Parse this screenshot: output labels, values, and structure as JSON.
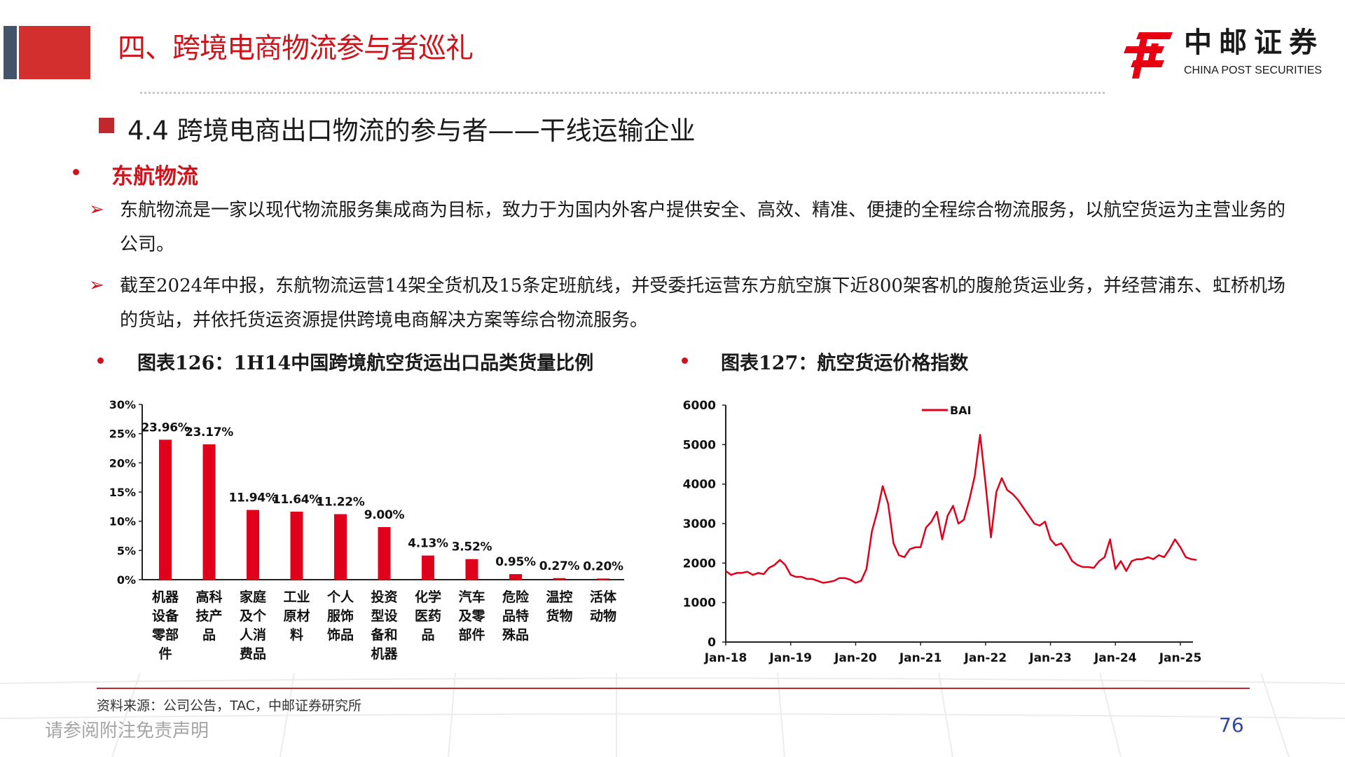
{
  "header": {
    "title": "四、跨境电商物流参与者巡礼",
    "logo_cn": "中邮证券",
    "logo_en": "CHINA POST SECURITIES"
  },
  "section": {
    "title": "4.4  跨境电商出口物流的参与者——干线运输企业",
    "subheading": "东航物流",
    "paragraphs": [
      "东航物流是一家以现代物流服务集成商为目标，致力于为国内外客户提供安全、高效、精准、便捷的全程综合物流服务，以航空货运为主营业务的公司。",
      "截至2024年中报，东航物流运营14架全货机及15条定班航线，并受委托运营东方航空旗下近800架客机的腹舱货运业务，并经营浦东、虹桥机场的货站，并依托货运资源提供跨境电商解决方案等综合物流服务。"
    ]
  },
  "colors": {
    "accent": "#d0121b",
    "bar": "#e0001b",
    "page_number": "#2f4a9a"
  },
  "chart_data": [
    {
      "type": "bar",
      "title": "图表126：1H14中国跨境航空货运出口品类货量比例",
      "categories": [
        "机器设备零部件",
        "高科技产品",
        "家庭及个人消费品",
        "工业原材料",
        "个人服饰饰品",
        "投资型设备和机器",
        "化学医药品",
        "汽车及零部件",
        "危险品特殊品",
        "温控货物",
        "活体动物"
      ],
      "values": [
        23.96,
        23.17,
        11.94,
        11.64,
        11.22,
        9.0,
        4.13,
        3.52,
        0.95,
        0.27,
        0.2
      ],
      "data_labels": [
        "23.96%",
        "23.17%",
        "11.94%",
        "11.64%",
        "11.22%",
        "9.00%",
        "4.13%",
        "3.52%",
        "0.95%",
        "0.27%",
        "0.20%"
      ],
      "yticks": [
        "0%",
        "5%",
        "10%",
        "15%",
        "20%",
        "25%",
        "30%"
      ],
      "ylim": [
        0,
        30
      ],
      "xlabel": "",
      "ylabel": ""
    },
    {
      "type": "line",
      "title": "图表127：航空货运价格指数",
      "legend": [
        "BAI"
      ],
      "legend_position": "top-center",
      "xticks": [
        "Jan-18",
        "Jan-19",
        "Jan-20",
        "Jan-21",
        "Jan-22",
        "Jan-23",
        "Jan-24",
        "Jan-25"
      ],
      "yticks": [
        "0",
        "1000",
        "2000",
        "3000",
        "4000",
        "5000",
        "6000"
      ],
      "ylim": [
        0,
        6000
      ],
      "x_start": "2018-01",
      "x_unit": "month",
      "series": [
        {
          "name": "BAI",
          "values": [
            1800,
            1700,
            1750,
            1750,
            1780,
            1700,
            1750,
            1720,
            1880,
            1950,
            2080,
            1950,
            1700,
            1650,
            1650,
            1600,
            1600,
            1550,
            1500,
            1520,
            1550,
            1620,
            1620,
            1580,
            1500,
            1550,
            1850,
            2800,
            3300,
            3950,
            3500,
            2500,
            2200,
            2150,
            2350,
            2400,
            2400,
            2900,
            3050,
            3300,
            2600,
            3200,
            3450,
            3000,
            3100,
            3600,
            4200,
            5250,
            4000,
            2650,
            3800,
            4150,
            3850,
            3750,
            3600,
            3400,
            3200,
            3000,
            2950,
            3050,
            2600,
            2450,
            2500,
            2300,
            2050,
            1950,
            1900,
            1900,
            1880,
            2050,
            2150,
            2600,
            1850,
            2050,
            1800,
            2050,
            2100,
            2100,
            2150,
            2100,
            2200,
            2150,
            2350,
            2600,
            2400,
            2150,
            2100,
            2080
          ]
        }
      ]
    }
  ],
  "footer": {
    "source": "资料来源：公司公告，TAC，中邮证券研究所",
    "disclaimer": "请参阅附注免责声明",
    "page_number": "76"
  }
}
